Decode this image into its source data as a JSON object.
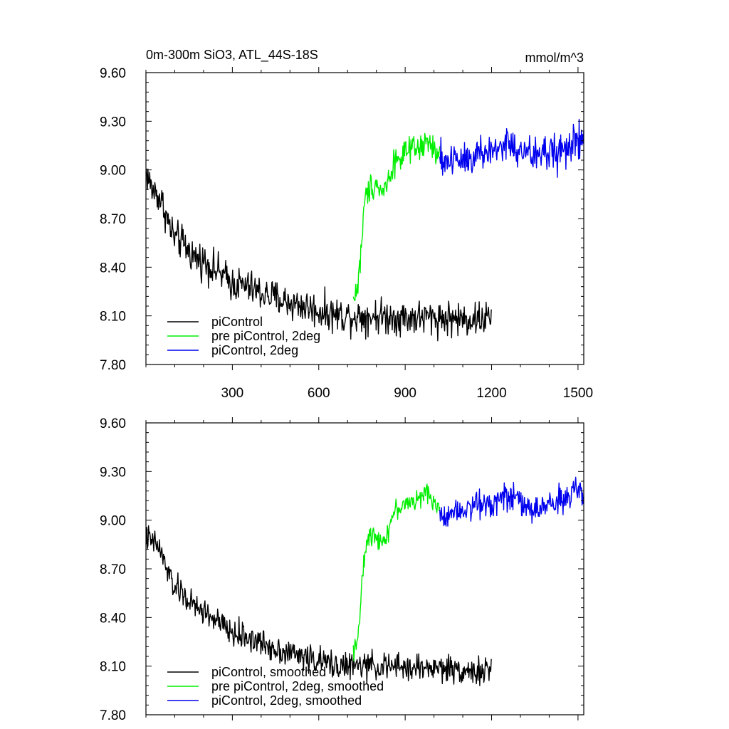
{
  "figure": {
    "title_left": "0m-300m SiO3, ATL_44S-18S",
    "title_right": "mmol/m^3"
  },
  "chart_data": [
    {
      "type": "line",
      "panel": "top",
      "xlim": [
        0,
        1520
      ],
      "ylim": [
        7.8,
        9.6
      ],
      "x_ticks": [
        300,
        600,
        900,
        1200,
        1500
      ],
      "x_tick_labels": [
        "300",
        "600",
        "900",
        "1200",
        "1500"
      ],
      "y_ticks": [
        7.8,
        8.1,
        8.4,
        8.7,
        9.0,
        9.3,
        9.6
      ],
      "y_tick_labels": [
        "7.80",
        "8.10",
        "8.40",
        "8.70",
        "9.00",
        "9.30",
        "9.60"
      ],
      "legend_placement": "bottom-left",
      "series": [
        {
          "name": "piControl",
          "color": "#000000",
          "x_start": 1,
          "x_end": 1200,
          "points": [
            [
              1,
              8.99
            ],
            [
              20,
              8.88
            ],
            [
              40,
              8.85
            ],
            [
              60,
              8.78
            ],
            [
              80,
              8.66
            ],
            [
              100,
              8.58
            ],
            [
              120,
              8.56
            ],
            [
              150,
              8.5
            ],
            [
              170,
              8.46
            ],
            [
              200,
              8.44
            ],
            [
              250,
              8.37
            ],
            [
              300,
              8.3
            ],
            [
              350,
              8.28
            ],
            [
              400,
              8.24
            ],
            [
              450,
              8.21
            ],
            [
              500,
              8.18
            ],
            [
              550,
              8.16
            ],
            [
              600,
              8.13
            ],
            [
              650,
              8.11
            ],
            [
              700,
              8.1
            ],
            [
              750,
              8.1
            ],
            [
              800,
              8.1
            ],
            [
              900,
              8.09
            ],
            [
              1000,
              8.09
            ],
            [
              1100,
              8.08
            ],
            [
              1150,
              8.08
            ],
            [
              1200,
              8.09
            ]
          ],
          "noise": 0.09
        },
        {
          "name": "pre piControl, 2deg",
          "color": "#00ee00",
          "x_start": 720,
          "x_end": 1020,
          "points": [
            [
              720,
              8.2
            ],
            [
              735,
              8.28
            ],
            [
              745,
              8.45
            ],
            [
              755,
              8.72
            ],
            [
              765,
              8.85
            ],
            [
              780,
              8.9
            ],
            [
              800,
              8.92
            ],
            [
              820,
              8.86
            ],
            [
              840,
              8.93
            ],
            [
              860,
              9.05
            ],
            [
              900,
              9.1
            ],
            [
              950,
              9.13
            ],
            [
              980,
              9.17
            ],
            [
              1000,
              9.12
            ],
            [
              1020,
              9.07
            ]
          ],
          "noise": 0.07
        },
        {
          "name": "piControl, 2deg",
          "color": "#0000ee",
          "x_start": 1020,
          "x_end": 1520,
          "points": [
            [
              1020,
              9.05
            ],
            [
              1100,
              9.08
            ],
            [
              1200,
              9.11
            ],
            [
              1250,
              9.17
            ],
            [
              1300,
              9.1
            ],
            [
              1350,
              9.09
            ],
            [
              1400,
              9.11
            ],
            [
              1450,
              9.12
            ],
            [
              1500,
              9.18
            ],
            [
              1520,
              9.17
            ]
          ],
          "noise": 0.1
        }
      ]
    },
    {
      "type": "line",
      "panel": "bottom",
      "xlim": [
        0,
        1520
      ],
      "ylim": [
        7.8,
        9.6
      ],
      "x_ticks": [
        300,
        600,
        900,
        1200,
        1500
      ],
      "y_ticks": [
        7.8,
        8.1,
        8.4,
        8.7,
        9.0,
        9.3,
        9.6
      ],
      "y_tick_labels": [
        "7.80",
        "8.10",
        "8.40",
        "8.70",
        "9.00",
        "9.30",
        "9.60"
      ],
      "legend_placement": "bottom-left",
      "series": [
        {
          "name": "piControl, smoothed",
          "color": "#000000",
          "x_start": 1,
          "x_end": 1200,
          "points": [
            [
              1,
              8.9
            ],
            [
              20,
              8.86
            ],
            [
              40,
              8.85
            ],
            [
              60,
              8.76
            ],
            [
              80,
              8.66
            ],
            [
              100,
              8.58
            ],
            [
              120,
              8.56
            ],
            [
              150,
              8.5
            ],
            [
              170,
              8.46
            ],
            [
              200,
              8.44
            ],
            [
              250,
              8.37
            ],
            [
              300,
              8.3
            ],
            [
              350,
              8.28
            ],
            [
              400,
              8.24
            ],
            [
              450,
              8.21
            ],
            [
              500,
              8.18
            ],
            [
              550,
              8.16
            ],
            [
              600,
              8.13
            ],
            [
              650,
              8.11
            ],
            [
              700,
              8.1
            ],
            [
              750,
              8.1
            ],
            [
              800,
              8.1
            ],
            [
              900,
              8.09
            ],
            [
              1000,
              8.09
            ],
            [
              1100,
              8.08
            ],
            [
              1150,
              8.06
            ],
            [
              1200,
              8.07
            ]
          ],
          "noise": 0.07
        },
        {
          "name": "pre piControl, 2deg, smoothed",
          "color": "#00ee00",
          "x_start": 720,
          "x_end": 1020,
          "points": [
            [
              720,
              8.2
            ],
            [
              735,
              8.28
            ],
            [
              745,
              8.45
            ],
            [
              755,
              8.72
            ],
            [
              765,
              8.85
            ],
            [
              780,
              8.9
            ],
            [
              800,
              8.92
            ],
            [
              820,
              8.86
            ],
            [
              840,
              8.93
            ],
            [
              860,
              9.05
            ],
            [
              900,
              9.1
            ],
            [
              950,
              9.13
            ],
            [
              980,
              9.17
            ],
            [
              1000,
              9.12
            ],
            [
              1020,
              9.07
            ]
          ],
          "noise": 0.05
        },
        {
          "name": "piControl, 2deg, smoothed",
          "color": "#0000ee",
          "x_start": 1020,
          "x_end": 1520,
          "points": [
            [
              1020,
              9.02
            ],
            [
              1100,
              9.08
            ],
            [
              1200,
              9.11
            ],
            [
              1250,
              9.17
            ],
            [
              1300,
              9.1
            ],
            [
              1350,
              9.06
            ],
            [
              1400,
              9.1
            ],
            [
              1450,
              9.13
            ],
            [
              1500,
              9.18
            ],
            [
              1520,
              9.14
            ]
          ],
          "noise": 0.07
        }
      ]
    }
  ]
}
